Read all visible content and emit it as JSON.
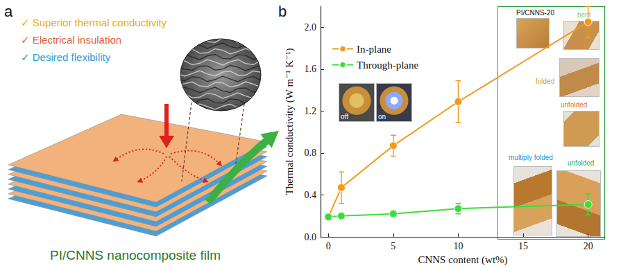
{
  "panel_labels": [
    "a",
    "b"
  ],
  "diagram": {
    "check": "✓",
    "features": [
      "Superior thermal conductivity",
      "Electrical insulation",
      "Desired flexibility"
    ],
    "film_label": "PI/CNNS nanocomposite film"
  },
  "insets": {
    "led": [
      "off",
      "on"
    ],
    "flexibility": {
      "sample": "PI/CNNS-20",
      "steps": [
        "bent",
        "folded",
        "unfolded",
        "multiply folded",
        "unfolded"
      ]
    }
  },
  "chart_data": {
    "type": "line",
    "x_label": "CNNS content (wt%)",
    "y_label": "Thermal conductivity (W m⁻¹ K⁻¹)",
    "x": [
      0,
      1,
      5,
      10,
      20
    ],
    "series": [
      {
        "name": "In-plane",
        "color": "#f39a1e",
        "marker": "circle",
        "values": [
          0.19,
          0.47,
          0.87,
          1.29,
          2.05
        ],
        "errors": [
          0.02,
          0.15,
          0.1,
          0.2,
          0.15
        ]
      },
      {
        "name": "Through-plane",
        "color": "#3ddc3d",
        "marker": "circle",
        "values": [
          0.19,
          0.2,
          0.22,
          0.27,
          0.31
        ],
        "errors": [
          0.02,
          0.02,
          0.03,
          0.05,
          0.1
        ]
      }
    ],
    "xlim": [
      -0.6,
      21.3
    ],
    "xticks": [
      0,
      5,
      10,
      15,
      20
    ],
    "ylim": [
      0,
      2.2
    ],
    "yticks": [
      {
        "value": 0,
        "label": "0.0"
      },
      0.4,
      0.8,
      1.2,
      1.6,
      {
        "value": 2,
        "label": "2.0"
      }
    ],
    "legend": "upper left",
    "grid": false
  }
}
